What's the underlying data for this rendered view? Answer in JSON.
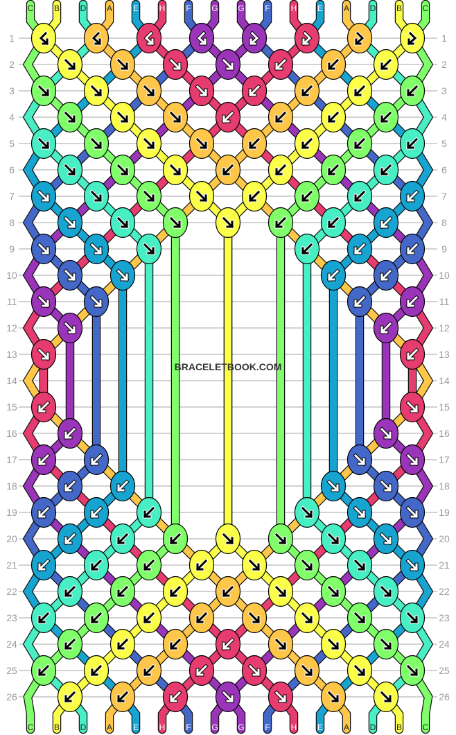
{
  "watermark": "BRACELETBOOK.COM",
  "strings_top": [
    "C",
    "B",
    "D",
    "A",
    "E",
    "H",
    "F",
    "G",
    "G",
    "F",
    "H",
    "E",
    "A",
    "D",
    "B",
    "C"
  ],
  "colors": {
    "A": "#ffc74a",
    "B": "#fbff4a",
    "C": "#80ff6a",
    "D": "#48eec4",
    "E": "#18a4d0",
    "F": "#4468c8",
    "G": "#9a34b8",
    "H": "#e63c70"
  },
  "dark_colors": [
    "E",
    "F",
    "G",
    "H"
  ],
  "knot_legend": {
    "F": "forward",
    "B": "backward",
    "L": "backward-forward",
    "R": "forward-backward",
    ".": "no knot"
  },
  "rows": [
    "LLLLRRRR",
    "FFFFBBB",
    "FFFFBBBB",
    "FFFBBBB",
    "FFFFBBBB",
    "FFFBBBB",
    "FFFFBBBB",
    "FFFFBBB",
    "FFF..BBB",
    "FF...BB",
    "FF....BB",
    "F.....B",
    "F......B",
    ".......",
    "B......F",
    "B.....F",
    "BB....FF",
    "BB...FF",
    "BBB..FFF",
    "BBBFFFF",
    "BBBBFFFF",
    "BBBBFFF",
    "BBBBFFFF",
    "BBBBFFF",
    "BBBBFFFF",
    "BBBFFFF"
  ],
  "row_numbers": [
    "1",
    "2",
    "3",
    "4",
    "5",
    "6",
    "7",
    "8",
    "9",
    "10",
    "11",
    "12",
    "13",
    "14",
    "15",
    "16",
    "17",
    "18",
    "19",
    "20",
    "21",
    "22",
    "23",
    "24",
    "25",
    "26"
  ]
}
